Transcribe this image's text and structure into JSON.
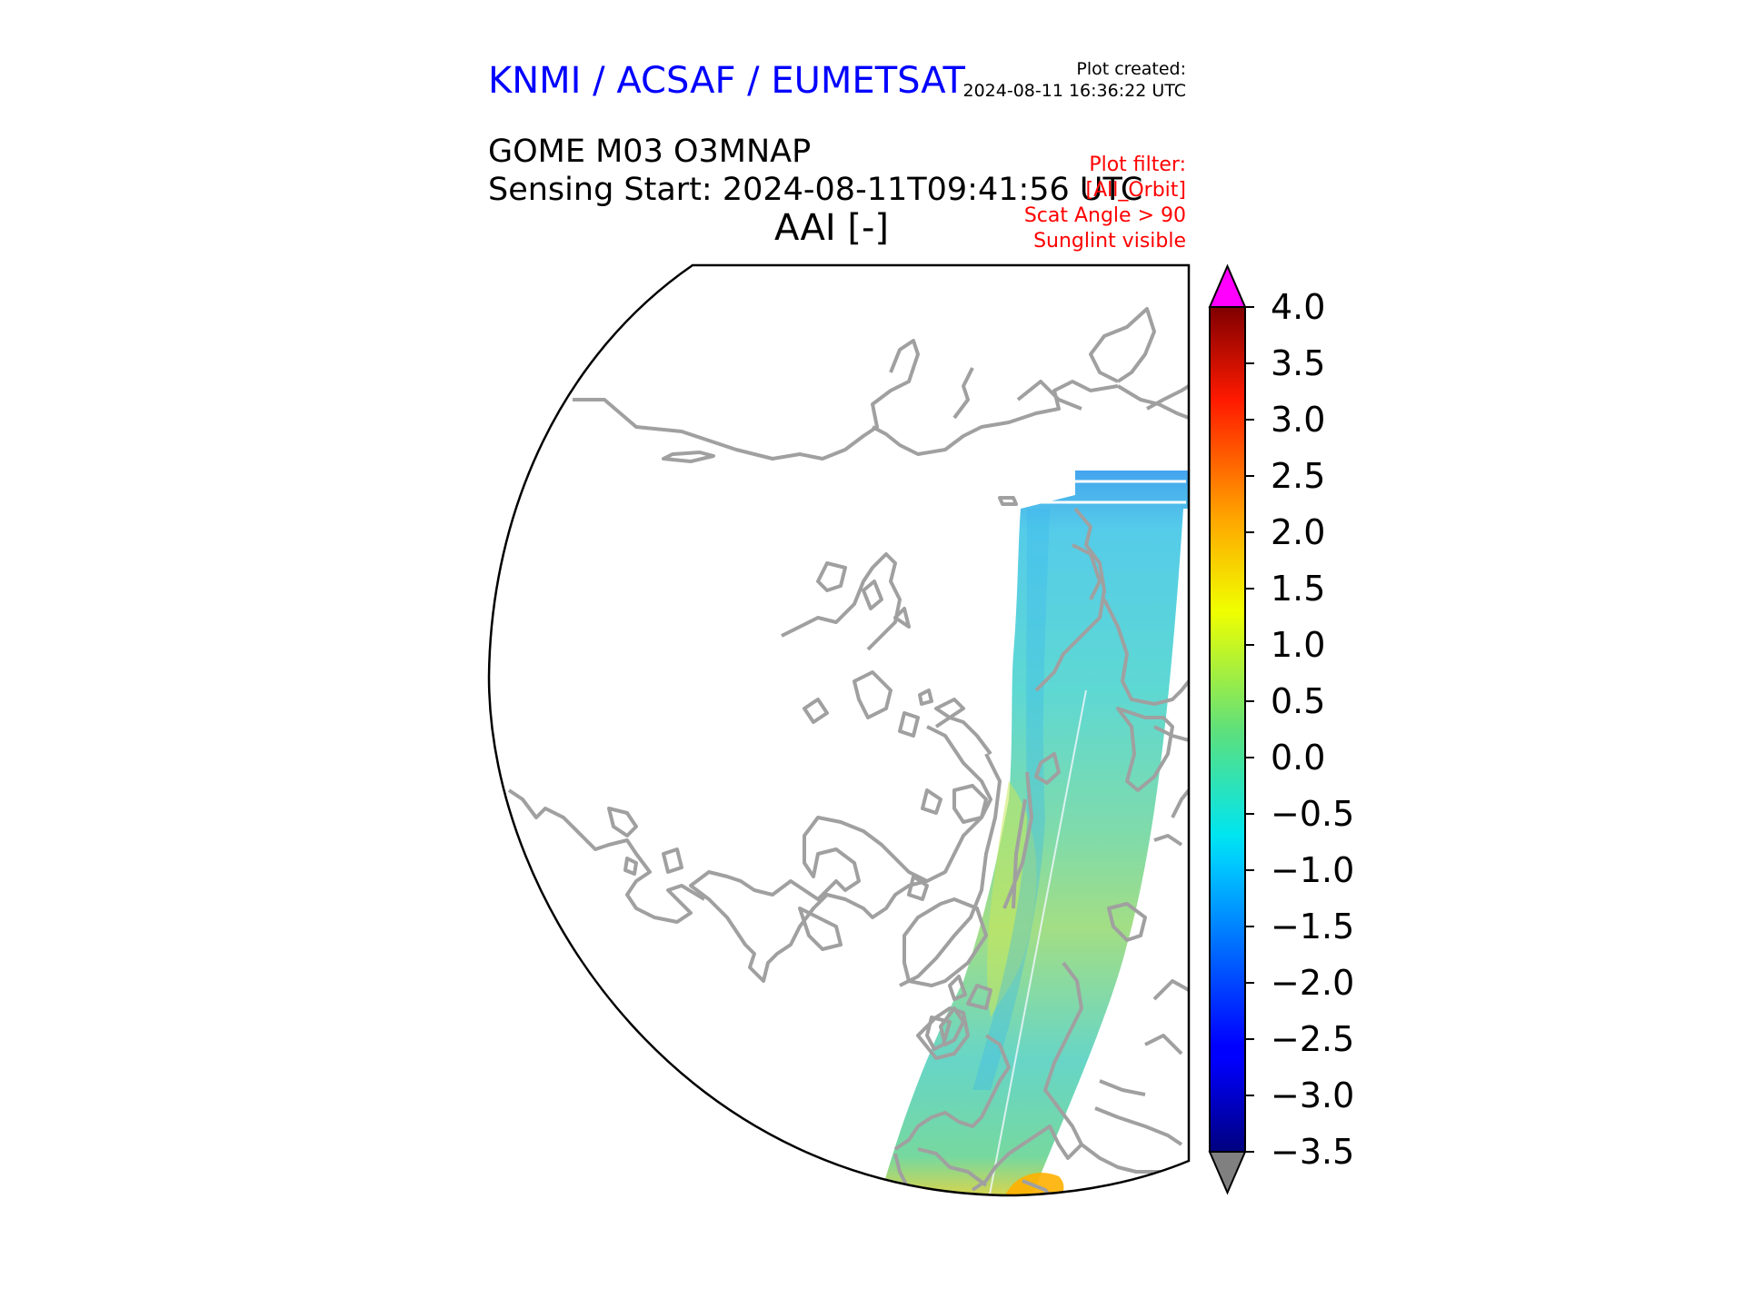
{
  "header": {
    "organization": "KNMI / ACSAF / EUMETSAT",
    "plot_created_label": "Plot created:",
    "plot_created_value": "2024-08-11 16:36:22 UTC",
    "product": "GOME M03 O3MNAP",
    "sensing_start": "Sensing Start: 2024-08-11T09:41:56 UTC",
    "variable_title": "AAI [-]"
  },
  "filter": {
    "title": "Plot filter:",
    "lines": [
      "[All_Orbit]",
      "Scat Angle > 90",
      "Sunglint visible"
    ]
  },
  "colorbar": {
    "min": -3.5,
    "max": 4.0,
    "tick_labels": [
      "4.0",
      "3.5",
      "3.0",
      "2.5",
      "2.0",
      "1.5",
      "1.0",
      "0.5",
      "0.0",
      "−0.5",
      "−1.0",
      "−1.5",
      "−2.0",
      "−2.5",
      "−3.0",
      "−3.5"
    ],
    "over_color": "#ff00ff",
    "under_color": "#808080"
  },
  "map": {
    "projection": "north-polar stereographic",
    "coastline_color": "#a0a0a0",
    "swath_typical_range": "-1.5 to 1.0"
  }
}
